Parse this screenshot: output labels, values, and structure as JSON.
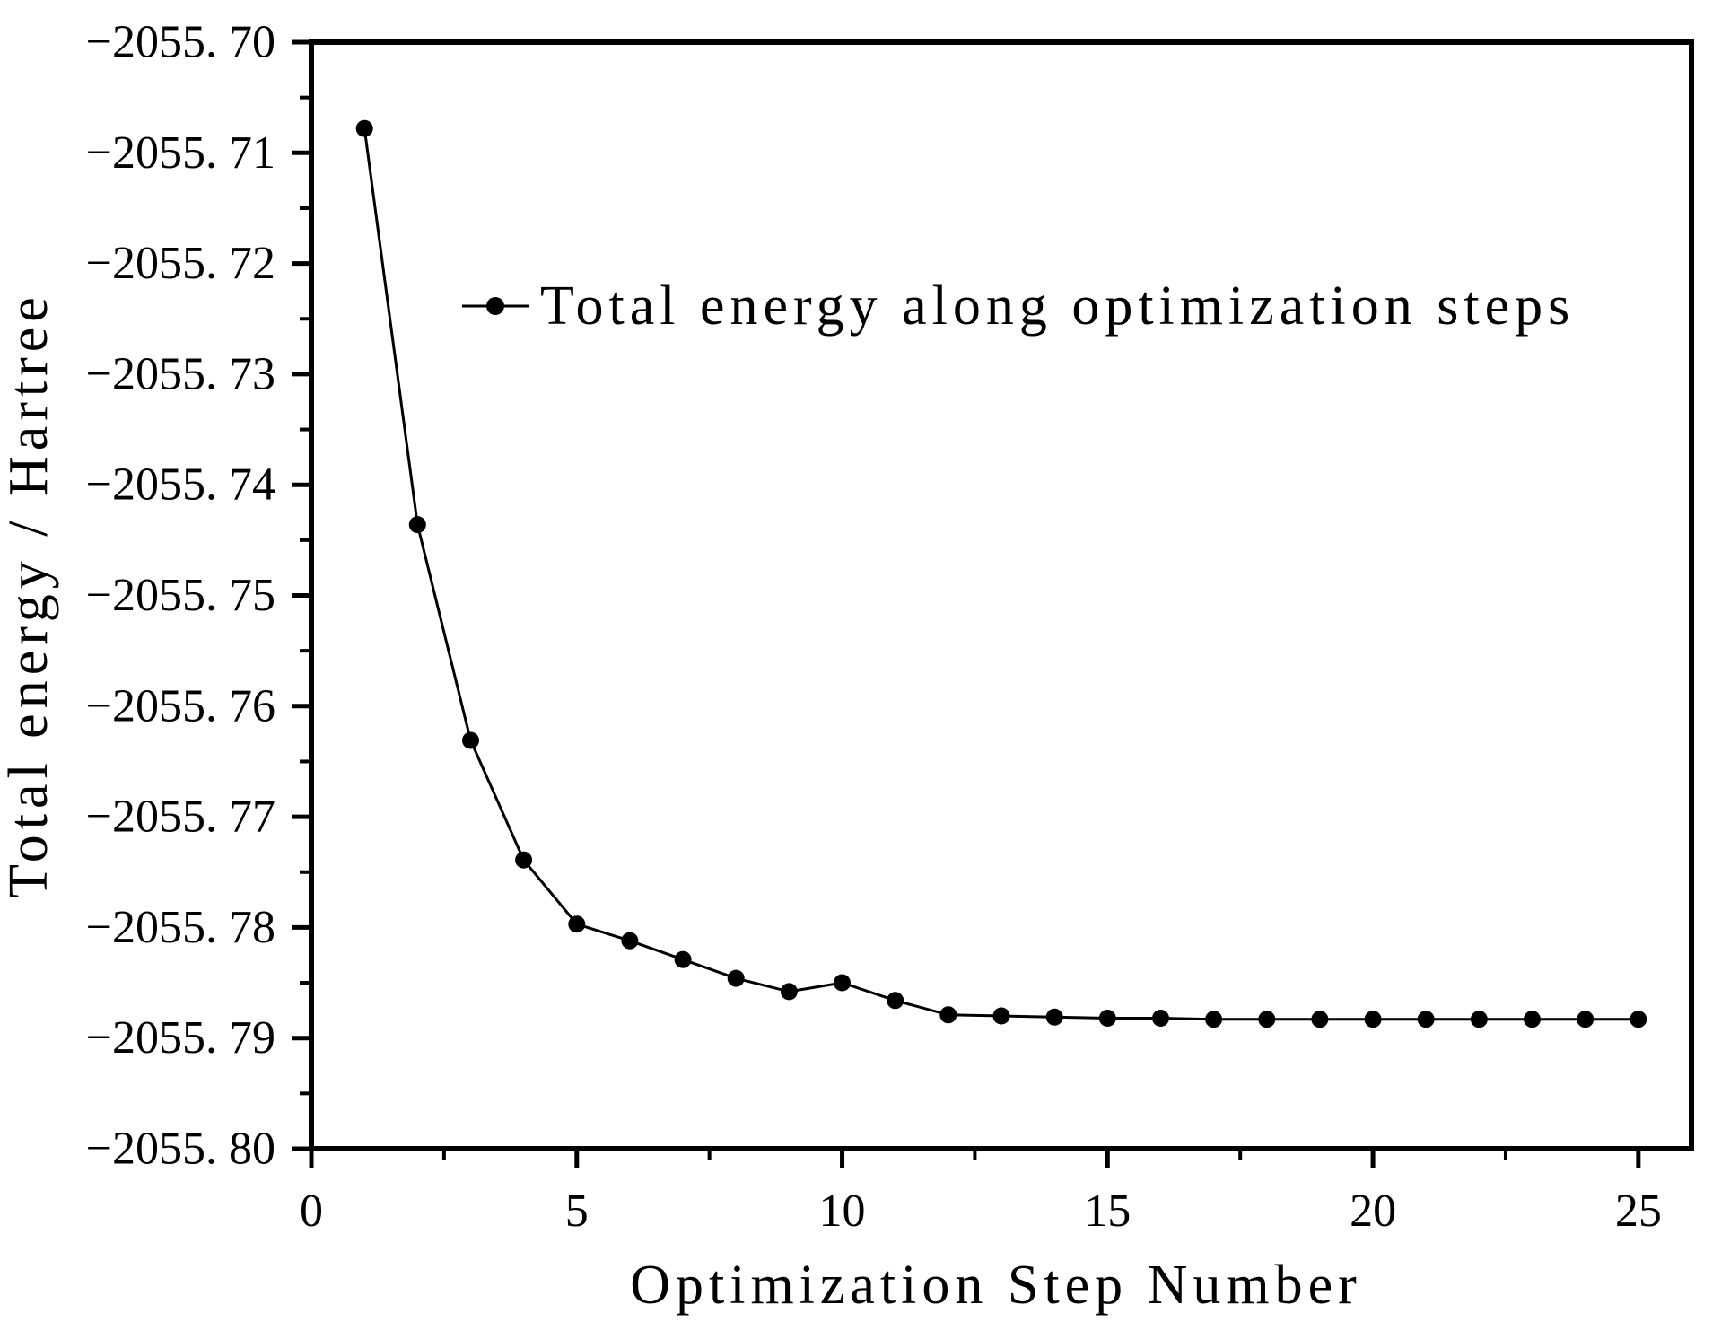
{
  "figure": {
    "background_color": "#ffffff",
    "line_color": "#000000",
    "marker_color": "#000000"
  },
  "chart_data": {
    "type": "line",
    "title": "",
    "xlabel": "Optimization Step Number",
    "ylabel": "Total energy / Hartree",
    "legend_label": "Total energy along optimization steps",
    "legend_position": "upper center",
    "legend_marker": "line-with-filled-circle",
    "marker": "filled-circle",
    "grid": false,
    "xlim": [
      0,
      26
    ],
    "ylim": [
      -2055.8,
      -2055.7
    ],
    "x_major_ticks": [
      0,
      5,
      10,
      15,
      20,
      25
    ],
    "x_tick_labels": [
      "0",
      "5",
      "10",
      "15",
      "20",
      "25"
    ],
    "x_minor_ticks": [
      2.5,
      7.5,
      12.5,
      17.5,
      22.5
    ],
    "y_major_ticks": [
      -2055.7,
      -2055.71,
      -2055.72,
      -2055.73,
      -2055.74,
      -2055.75,
      -2055.76,
      -2055.77,
      -2055.78,
      -2055.79,
      -2055.8
    ],
    "y_tick_labels": [
      "−2055. 70",
      "−2055. 71",
      "−2055. 72",
      "−2055. 73",
      "−2055. 74",
      "−2055. 75",
      "−2055. 76",
      "−2055. 77",
      "−2055. 78",
      "−2055. 79",
      "−2055. 80"
    ],
    "y_minor_ticks": [
      -2055.705,
      -2055.715,
      -2055.725,
      -2055.735,
      -2055.745,
      -2055.755,
      -2055.765,
      -2055.775,
      -2055.785,
      -2055.795
    ],
    "x": [
      1,
      2,
      3,
      4,
      5,
      6,
      7,
      8,
      9,
      10,
      11,
      12,
      13,
      14,
      15,
      16,
      17,
      18,
      19,
      20,
      21,
      22,
      23,
      24,
      25
    ],
    "series": [
      {
        "name": "Total energy along optimization steps",
        "values": [
          -2055.7078,
          -2055.7436,
          -2055.7631,
          -2055.7739,
          -2055.7797,
          -2055.7812,
          -2055.7829,
          -2055.7846,
          -2055.7858,
          -2055.785,
          -2055.7866,
          -2055.7879,
          -2055.788,
          -2055.7881,
          -2055.7882,
          -2055.7882,
          -2055.7883,
          -2055.7883,
          -2055.7883,
          -2055.7883,
          -2055.7883,
          -2055.7883,
          -2055.7883,
          -2055.7883,
          -2055.7883
        ]
      }
    ]
  }
}
